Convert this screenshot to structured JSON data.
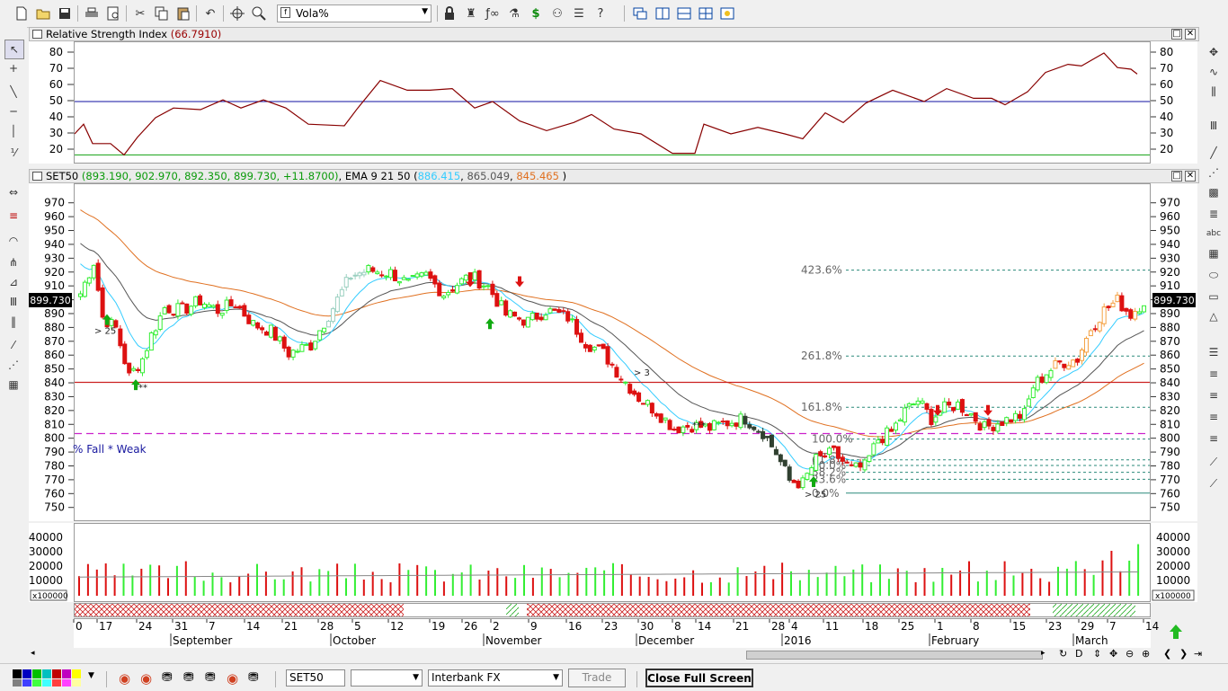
{
  "toolbar": {
    "symbol_select": "Vola%"
  },
  "rsi_panel": {
    "title": "Relative Strength Index",
    "value": "(66.7910)",
    "value_color": "#990000",
    "y_ticks": [
      "80",
      "70",
      "60",
      "50",
      "40",
      "30",
      "20"
    ]
  },
  "price_panel": {
    "symbol": "SET50",
    "ohlc": "(893.190, 902.970, 892.350, 899.730, +11.8700)",
    "ema_label": "EMA 9 21 50",
    "ema_open": "(",
    "ema_values": [
      "886.415",
      "865.049",
      "845.465"
    ],
    "ema_close": ")",
    "ema_colors": [
      "#33ccff",
      "#555555",
      "#e07020"
    ],
    "last_price": "899.730",
    "y_ticks": [
      "970",
      "960",
      "950",
      "940",
      "930",
      "920",
      "910",
      "900",
      "890",
      "880",
      "870",
      "860",
      "850",
      "840",
      "830",
      "820",
      "810",
      "800",
      "790",
      "780",
      "770",
      "760",
      "750"
    ],
    "fib_labels": [
      "423.6%",
      "261.8%",
      "161.8%",
      "100.0%",
      "61.8%",
      "50.0%",
      "38.2%",
      "23.6%",
      "0.0%"
    ],
    "annotations": [
      "> 25",
      "***",
      "> 3",
      "***",
      "> 25"
    ],
    "fall_text": "% Fall *  Weak",
    "green_color": "#33ee33",
    "red_color": "#dd1111"
  },
  "volume_panel": {
    "y_ticks": [
      "40000",
      "30000",
      "20000",
      "10000"
    ],
    "multiplier": "x100000"
  },
  "date_axis": {
    "day_labels": [
      "0",
      "17",
      "24",
      "31",
      "7",
      "14",
      "21",
      "28",
      "5",
      "12",
      "19",
      "26",
      "2",
      "9",
      "16",
      "23",
      "30",
      "8",
      "14",
      "21",
      "28",
      "4",
      "11",
      "18",
      "25",
      "1",
      "8",
      "15",
      "23",
      "29",
      "7",
      "14"
    ],
    "month_labels": [
      "September",
      "October",
      "November",
      "December",
      "2016",
      "February",
      "March"
    ]
  },
  "statusbar": {
    "symbol_field": "SET50",
    "source_select": "Interbank FX",
    "trade_button": "Trade",
    "fullscreen_button": "Close Full Screen"
  }
}
